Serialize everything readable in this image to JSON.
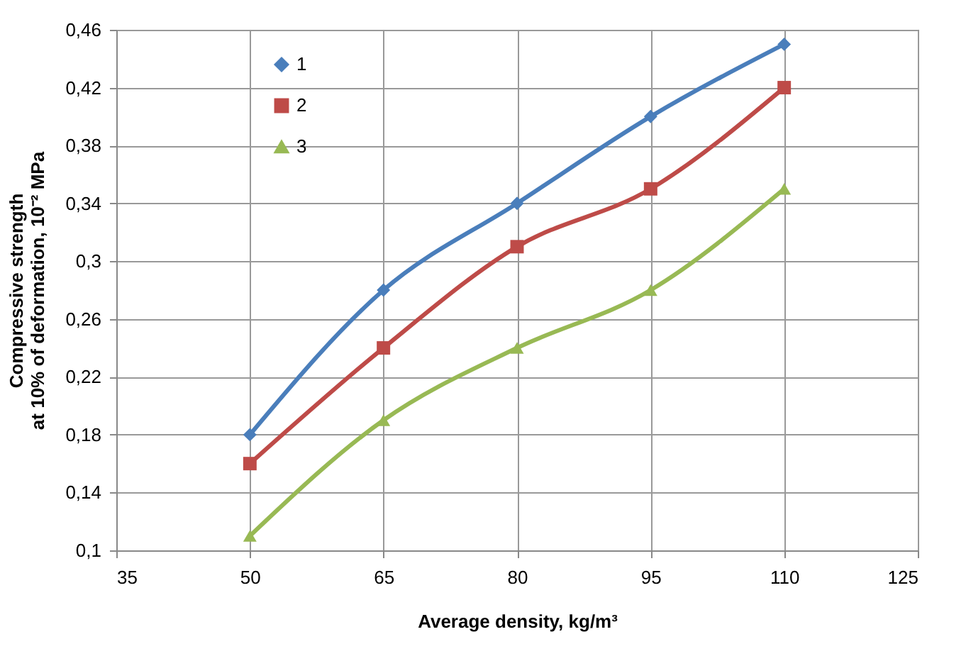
{
  "chart_data": {
    "type": "line",
    "xlabel": "Average density, kg/m³",
    "ylabel": [
      "Compressive strength",
      "at 10% of deformation, 10⁻² MPa"
    ],
    "x": [
      50,
      65,
      80,
      95,
      110
    ],
    "series": [
      {
        "name": "1",
        "color": "#4a7ebb",
        "marker": "diamond",
        "values": [
          0.18,
          0.28,
          0.34,
          0.4,
          0.45
        ]
      },
      {
        "name": "2",
        "color": "#be4b48",
        "marker": "square",
        "values": [
          0.16,
          0.24,
          0.31,
          0.35,
          0.42
        ]
      },
      {
        "name": "3",
        "color": "#98b954",
        "marker": "triangle",
        "values": [
          0.11,
          0.19,
          0.24,
          0.28,
          0.35
        ]
      }
    ],
    "xlim": [
      35,
      125
    ],
    "xticks": [
      35,
      50,
      65,
      80,
      95,
      110,
      125
    ],
    "ylim": [
      0.1,
      0.46
    ],
    "yticks": [
      {
        "value": 0.1,
        "label": "0,1"
      },
      {
        "value": 0.14,
        "label": "0,14"
      },
      {
        "value": 0.18,
        "label": "0,18"
      },
      {
        "value": 0.22,
        "label": "0,22"
      },
      {
        "value": 0.26,
        "label": "0,26"
      },
      {
        "value": 0.3,
        "label": "0,3"
      },
      {
        "value": 0.34,
        "label": "0,34"
      },
      {
        "value": 0.38,
        "label": "0,38"
      },
      {
        "value": 0.42,
        "label": "0,42"
      },
      {
        "value": 0.46,
        "label": "0,46"
      }
    ],
    "grid": true,
    "legend": "top left",
    "line_style": "solid"
  }
}
